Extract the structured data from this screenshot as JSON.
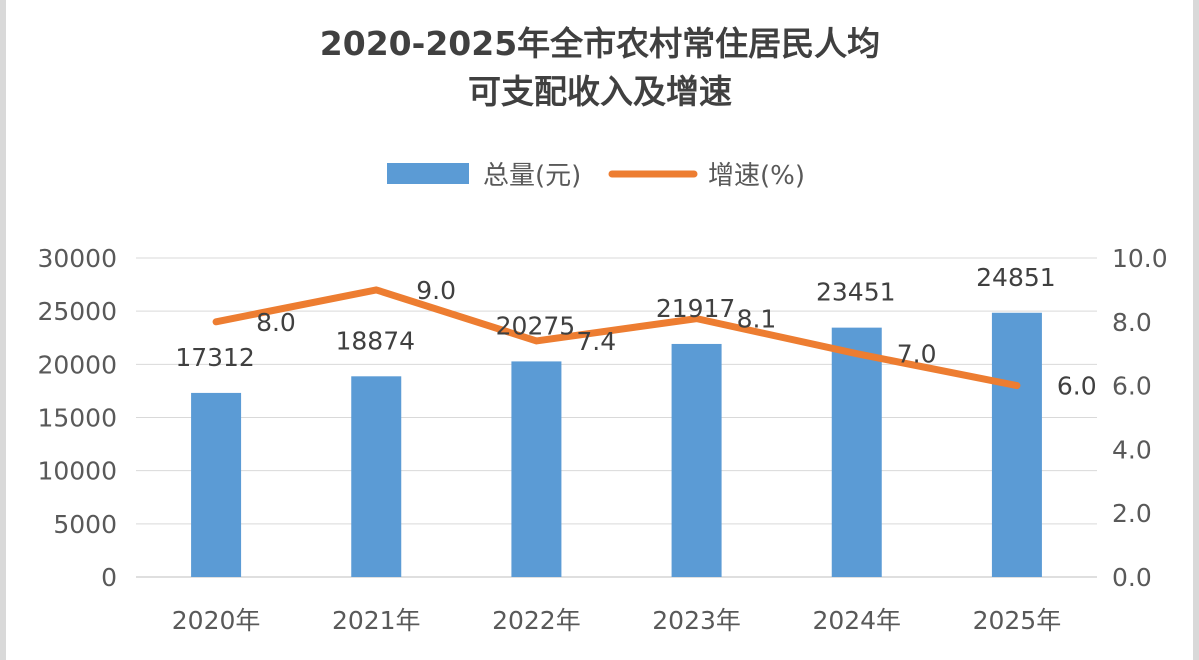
{
  "chart_data": {
    "type": "bar",
    "title_line1": "2020-2025年全市农村常住居民人均",
    "title_line2": "可支配收入及增速",
    "categories": [
      "2020年",
      "2021年",
      "2022年",
      "2023年",
      "2024年",
      "2025年"
    ],
    "series": [
      {
        "name": "总量(元)",
        "type": "bar",
        "axis": "left",
        "color": "#5b9bd5",
        "values": [
          17312,
          18874,
          20275,
          21917,
          23451,
          24851
        ]
      },
      {
        "name": "增速(%)",
        "type": "line",
        "axis": "right",
        "color": "#ed7d31",
        "values": [
          8.0,
          9.0,
          7.4,
          8.1,
          7.0,
          6.0
        ]
      }
    ],
    "y_left": {
      "min": 0,
      "max": 30000,
      "ticks": [
        "0",
        "5000",
        "10000",
        "15000",
        "20000",
        "25000",
        "30000"
      ]
    },
    "y_right": {
      "min": 0,
      "max": 10,
      "ticks": [
        "0.0",
        "2.0",
        "4.0",
        "6.0",
        "8.0",
        "10.0"
      ]
    },
    "bar_labels": [
      "17312",
      "18874",
      "20275",
      "21917",
      "23451",
      "24851"
    ],
    "line_labels": [
      "8.0",
      "9.0",
      "7.4",
      "8.1",
      "7.0",
      "6.0"
    ],
    "grid": true,
    "legend_position": "top"
  }
}
